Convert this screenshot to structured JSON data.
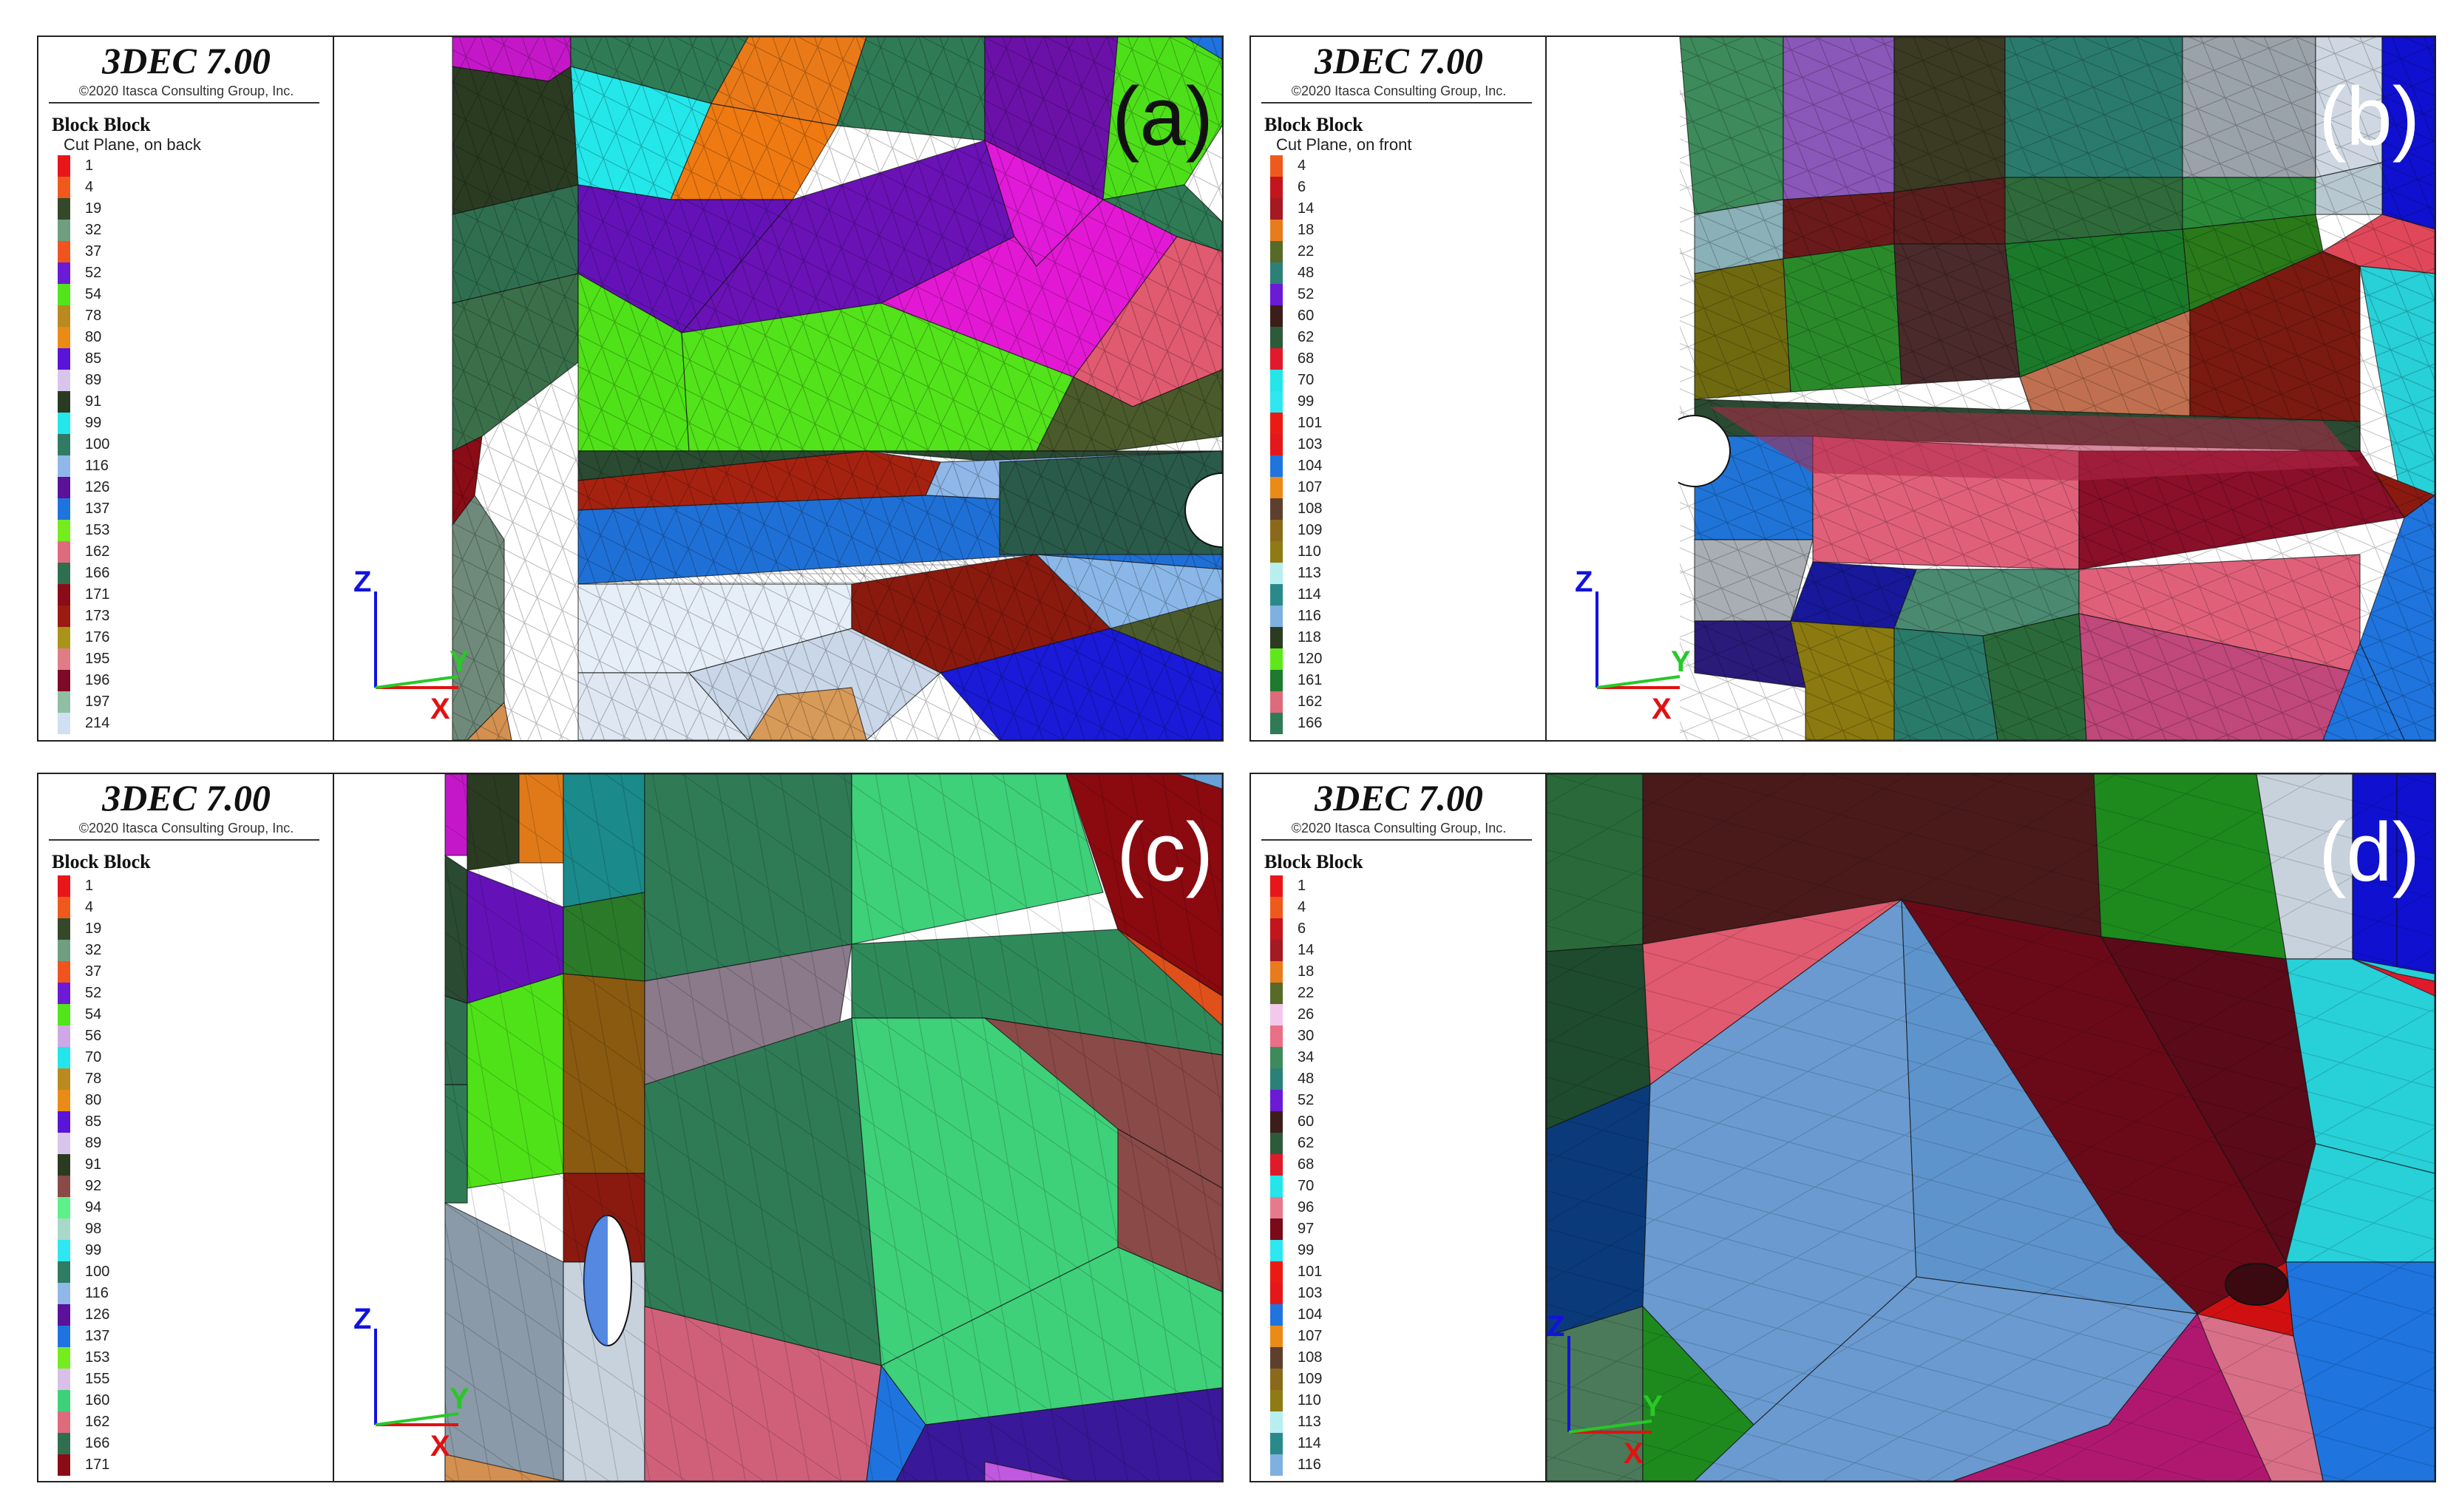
{
  "panels": [
    {
      "id": "a",
      "label": "(a)",
      "app_title": "3DEC 7.00",
      "copyright": "©2020 Itasca Consulting Group, Inc.",
      "legend_title": "Block Block",
      "legend_subtitle": "Cut Plane, on back",
      "entries": [
        {
          "id": "1",
          "color": "#e8161b"
        },
        {
          "id": "4",
          "color": "#ef5a1c"
        },
        {
          "id": "19",
          "color": "#34492a"
        },
        {
          "id": "32",
          "color": "#6f9e80"
        },
        {
          "id": "37",
          "color": "#f0541e"
        },
        {
          "id": "52",
          "color": "#6b1ad6"
        },
        {
          "id": "54",
          "color": "#52e51a"
        },
        {
          "id": "78",
          "color": "#b98a20"
        },
        {
          "id": "80",
          "color": "#ea8a17"
        },
        {
          "id": "85",
          "color": "#5a14d8"
        },
        {
          "id": "89",
          "color": "#d8c5ec"
        },
        {
          "id": "91",
          "color": "#2b3b22"
        },
        {
          "id": "99",
          "color": "#24e7ea"
        },
        {
          "id": "100",
          "color": "#2f7b63"
        },
        {
          "id": "116",
          "color": "#8fb7e8"
        },
        {
          "id": "126",
          "color": "#5a129a"
        },
        {
          "id": "137",
          "color": "#1f73de"
        },
        {
          "id": "153",
          "color": "#74ec1e"
        },
        {
          "id": "162",
          "color": "#de6b7c"
        },
        {
          "id": "166",
          "color": "#2f6f4f"
        },
        {
          "id": "171",
          "color": "#8a0c16"
        },
        {
          "id": "173",
          "color": "#9a1b11"
        },
        {
          "id": "176",
          "color": "#a89418"
        },
        {
          "id": "195",
          "color": "#df7d86"
        },
        {
          "id": "196",
          "color": "#7e0a2a"
        },
        {
          "id": "197",
          "color": "#8ebfa2"
        },
        {
          "id": "214",
          "color": "#cfe0f2"
        }
      ],
      "axes": {
        "z": "Z",
        "y": "Y",
        "x": "X"
      },
      "label_color": "#111111"
    },
    {
      "id": "b",
      "label": "(b)",
      "app_title": "3DEC 7.00",
      "copyright": "©2020 Itasca Consulting Group, Inc.",
      "legend_title": "Block Block",
      "legend_subtitle": "Cut Plane, on front",
      "entries": [
        {
          "id": "4",
          "color": "#ef5a1c"
        },
        {
          "id": "6",
          "color": "#c4141c"
        },
        {
          "id": "14",
          "color": "#a51922"
        },
        {
          "id": "18",
          "color": "#e87c1d"
        },
        {
          "id": "22",
          "color": "#576a28"
        },
        {
          "id": "48",
          "color": "#2b8077"
        },
        {
          "id": "52",
          "color": "#6b1ad6"
        },
        {
          "id": "60",
          "color": "#3b1e1a"
        },
        {
          "id": "62",
          "color": "#2d5a3a"
        },
        {
          "id": "68",
          "color": "#e01a2b"
        },
        {
          "id": "70",
          "color": "#24e5ea"
        },
        {
          "id": "99",
          "color": "#2ee7f0"
        },
        {
          "id": "101",
          "color": "#ec1a12"
        },
        {
          "id": "103",
          "color": "#e4181a"
        },
        {
          "id": "104",
          "color": "#1f74de"
        },
        {
          "id": "107",
          "color": "#ea8a17"
        },
        {
          "id": "108",
          "color": "#5e3f2e"
        },
        {
          "id": "109",
          "color": "#8a6a1a"
        },
        {
          "id": "110",
          "color": "#8f7a13"
        },
        {
          "id": "113",
          "color": "#b7eef0"
        },
        {
          "id": "114",
          "color": "#2a8a8a"
        },
        {
          "id": "116",
          "color": "#7fb0e0"
        },
        {
          "id": "118",
          "color": "#2b3b22"
        },
        {
          "id": "120",
          "color": "#5ee81c"
        },
        {
          "id": "161",
          "color": "#1e7a2e"
        },
        {
          "id": "162",
          "color": "#de6b7c"
        },
        {
          "id": "166",
          "color": "#2f7b56"
        }
      ],
      "axes": {
        "z": "Z",
        "y": "Y",
        "x": "X"
      },
      "label_color": "#ffffff"
    },
    {
      "id": "c",
      "label": "(c)",
      "app_title": "3DEC 7.00",
      "copyright": "©2020 Itasca Consulting Group, Inc.",
      "legend_title": "Block Block",
      "legend_subtitle": "",
      "entries": [
        {
          "id": "1",
          "color": "#e8161b"
        },
        {
          "id": "4",
          "color": "#ef5a1c"
        },
        {
          "id": "19",
          "color": "#34492a"
        },
        {
          "id": "32",
          "color": "#6f9e80"
        },
        {
          "id": "37",
          "color": "#f0541e"
        },
        {
          "id": "52",
          "color": "#6b1ad6"
        },
        {
          "id": "54",
          "color": "#52e51a"
        },
        {
          "id": "56",
          "color": "#cfa8e8"
        },
        {
          "id": "70",
          "color": "#24e5ea"
        },
        {
          "id": "78",
          "color": "#b98a20"
        },
        {
          "id": "80",
          "color": "#ea8a17"
        },
        {
          "id": "85",
          "color": "#5a14d8"
        },
        {
          "id": "89",
          "color": "#d8c5ec"
        },
        {
          "id": "91",
          "color": "#2b3b22"
        },
        {
          "id": "92",
          "color": "#8a4a48"
        },
        {
          "id": "94",
          "color": "#5ef08a"
        },
        {
          "id": "98",
          "color": "#a8d8c8"
        },
        {
          "id": "99",
          "color": "#2ee7f0"
        },
        {
          "id": "100",
          "color": "#2f7b63"
        },
        {
          "id": "116",
          "color": "#8fb7e8"
        },
        {
          "id": "126",
          "color": "#5a129a"
        },
        {
          "id": "137",
          "color": "#1f73de"
        },
        {
          "id": "153",
          "color": "#74ec1e"
        },
        {
          "id": "155",
          "color": "#d8c0e8"
        },
        {
          "id": "160",
          "color": "#3fd07a"
        },
        {
          "id": "162",
          "color": "#de6b7c"
        },
        {
          "id": "166",
          "color": "#2f6f4f"
        },
        {
          "id": "171",
          "color": "#8a0c16"
        }
      ],
      "axes": {
        "z": "Z",
        "y": "Y",
        "x": "X"
      },
      "label_color": "#ffffff"
    },
    {
      "id": "d",
      "label": "(d)",
      "app_title": "3DEC 7.00",
      "copyright": "©2020 Itasca Consulting Group, Inc.",
      "legend_title": "Block Block",
      "legend_subtitle": "",
      "entries": [
        {
          "id": "1",
          "color": "#e8161b"
        },
        {
          "id": "4",
          "color": "#ef5a1c"
        },
        {
          "id": "6",
          "color": "#c4141c"
        },
        {
          "id": "14",
          "color": "#a51922"
        },
        {
          "id": "18",
          "color": "#e87c1d"
        },
        {
          "id": "22",
          "color": "#576a28"
        },
        {
          "id": "26",
          "color": "#f4c8ec"
        },
        {
          "id": "30",
          "color": "#e87088"
        },
        {
          "id": "34",
          "color": "#3d8a5a"
        },
        {
          "id": "48",
          "color": "#2b8077"
        },
        {
          "id": "52",
          "color": "#6b1ad6"
        },
        {
          "id": "60",
          "color": "#3b1e1a"
        },
        {
          "id": "62",
          "color": "#2d5a3a"
        },
        {
          "id": "68",
          "color": "#e01a2b"
        },
        {
          "id": "70",
          "color": "#24e5ea"
        },
        {
          "id": "96",
          "color": "#e57a8e"
        },
        {
          "id": "97",
          "color": "#7a0a18"
        },
        {
          "id": "99",
          "color": "#2ee7f0"
        },
        {
          "id": "101",
          "color": "#ec1a12"
        },
        {
          "id": "103",
          "color": "#e4181a"
        },
        {
          "id": "104",
          "color": "#1f74de"
        },
        {
          "id": "107",
          "color": "#ea8a17"
        },
        {
          "id": "108",
          "color": "#5e3f2e"
        },
        {
          "id": "109",
          "color": "#8a6a1a"
        },
        {
          "id": "110",
          "color": "#8f7a13"
        },
        {
          "id": "113",
          "color": "#b7eef0"
        },
        {
          "id": "114",
          "color": "#2a8a8a"
        },
        {
          "id": "116",
          "color": "#7fb0e0"
        }
      ],
      "axes": {
        "z": "Z",
        "y": "Y",
        "x": "X"
      },
      "label_color": "#ffffff"
    }
  ]
}
